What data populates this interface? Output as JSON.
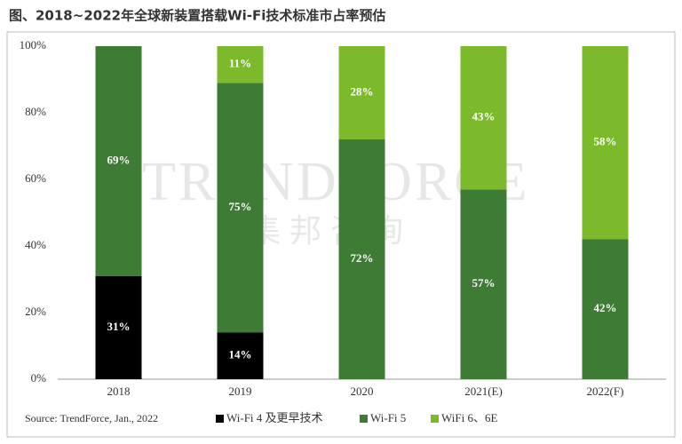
{
  "chart_data": {
    "type": "stacked_bar",
    "title": "图、2018~2022年全球新装置搭载Wi-Fi技术标准市占率预估",
    "categories": [
      "2018",
      "2019",
      "2020",
      "2021(E)",
      "2022(F)"
    ],
    "series": [
      {
        "name": "Wi-Fi 4 及更早技术",
        "color": "#000000",
        "values": [
          31,
          14,
          null,
          null,
          null
        ],
        "value_labels": [
          "31%",
          "14%",
          null,
          null,
          null
        ]
      },
      {
        "name": "Wi-Fi 5",
        "color": "#3e7b34",
        "values": [
          69,
          75,
          72,
          57,
          42
        ],
        "value_labels": [
          "69%",
          "75%",
          "72%",
          "57%",
          "42%"
        ]
      },
      {
        "name": "WiFi 6、6E",
        "color": "#7cba2c",
        "values": [
          null,
          11,
          28,
          43,
          58
        ],
        "value_labels": [
          null,
          "11%",
          "28%",
          "43%",
          "58%"
        ]
      }
    ],
    "ylim": [
      0,
      100
    ],
    "yticks": [
      {
        "value": 0,
        "label": "0%"
      },
      {
        "value": 20,
        "label": "20%"
      },
      {
        "value": 40,
        "label": "40%"
      },
      {
        "value": 60,
        "label": "60%"
      },
      {
        "value": 80,
        "label": "80%"
      },
      {
        "value": 100,
        "label": "100%"
      }
    ],
    "grid": false,
    "source": "Source: TrendForce, Jan., 2022",
    "watermark": [
      "TRENDFORCE",
      "集邦咨询"
    ]
  }
}
